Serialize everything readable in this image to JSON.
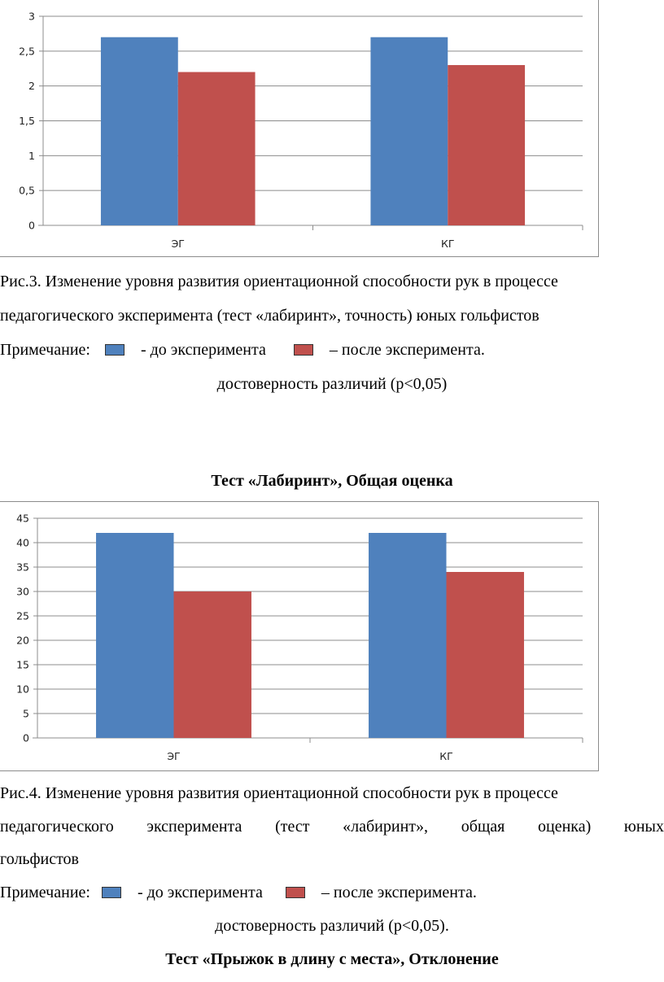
{
  "chart_data": [
    {
      "type": "bar",
      "title": "",
      "categories": [
        "ЭГ",
        "КГ"
      ],
      "series": [
        {
          "values": [
            2.7,
            2.7
          ],
          "color": "#4f81bd"
        },
        {
          "values": [
            2.2,
            2.3
          ],
          "color": "#c0504d"
        }
      ],
      "ylim": [
        0,
        3
      ],
      "yticks": [
        "0",
        "0,5",
        "1",
        "1,5",
        "2",
        "2,5",
        "3"
      ],
      "grid": true
    },
    {
      "type": "bar",
      "title": "Тест «Лабиринт», Общая оценка",
      "categories": [
        "ЭГ",
        "КГ"
      ],
      "series": [
        {
          "values": [
            42,
            42
          ],
          "color": "#4f81bd"
        },
        {
          "values": [
            30,
            34
          ],
          "color": "#c0504d"
        }
      ],
      "ylim": [
        0,
        45
      ],
      "yticks": [
        "0",
        "5",
        "10",
        "15",
        "20",
        "25",
        "30",
        "35",
        "40",
        "45"
      ],
      "grid": true
    }
  ],
  "caption1": {
    "line1": "Рис.3. Изменение уровня развития ориентационной способности рук в процессе",
    "line2": "педагогического эксперимента (тест «лабиринт», точность) юных гольфистов",
    "note_label": "Примечание:",
    "note_before": "- до эксперимента",
    "note_after": "– после эксперимента.",
    "significance": "достоверность различий (р<0,05)"
  },
  "caption2": {
    "line1": "Рис.4. Изменение уровня развития ориентационной способности рук в процессе",
    "line2": "педагогического эксперимента (тест «лабиринт», общая оценка) юных",
    "line3": "гольфистов",
    "note_label": "Примечание:",
    "note_before": "- до эксперимента",
    "note_after": "– после эксперимента.",
    "significance": "достоверность различий (р<0,05)."
  },
  "next_heading": "Тест «Прыжок в длину с места», Отклонение"
}
